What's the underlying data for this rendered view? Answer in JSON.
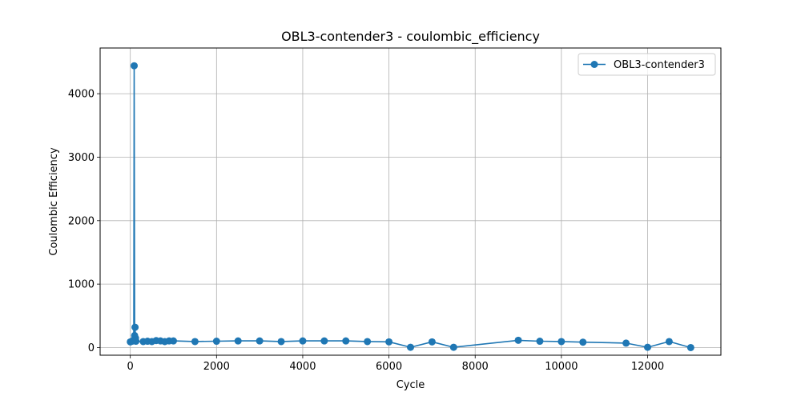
{
  "chart_data": {
    "type": "line",
    "title": "OBL3-contender3 - coulombic_efficiency",
    "xlabel": "Cycle",
    "ylabel": "Coulombic Efficiency",
    "xlim": [
      -700,
      13700
    ],
    "ylim": [
      -120,
      4720
    ],
    "xticks": [
      0,
      2000,
      4000,
      6000,
      8000,
      10000,
      12000
    ],
    "yticks": [
      0,
      1000,
      2000,
      3000,
      4000
    ],
    "grid": true,
    "legend_position": "top-right",
    "series": [
      {
        "name": "OBL3-contender3",
        "color": "#1f77b4",
        "marker": "circle",
        "x": [
          1,
          40,
          80,
          90,
          100,
          110,
          120,
          130,
          300,
          400,
          500,
          600,
          700,
          800,
          900,
          1000,
          1500,
          2000,
          2500,
          3000,
          3500,
          4000,
          4500,
          5000,
          5500,
          6000,
          6500,
          7000,
          7500,
          9000,
          9500,
          10000,
          10500,
          11500,
          12000,
          12500,
          13000
        ],
        "y": [
          90,
          100,
          120,
          4440,
          190,
          320,
          150,
          100,
          95,
          100,
          95,
          110,
          105,
          95,
          105,
          105,
          95,
          100,
          105,
          105,
          95,
          105,
          105,
          105,
          95,
          90,
          5,
          90,
          5,
          115,
          100,
          95,
          85,
          70,
          5,
          95,
          0
        ]
      }
    ]
  }
}
